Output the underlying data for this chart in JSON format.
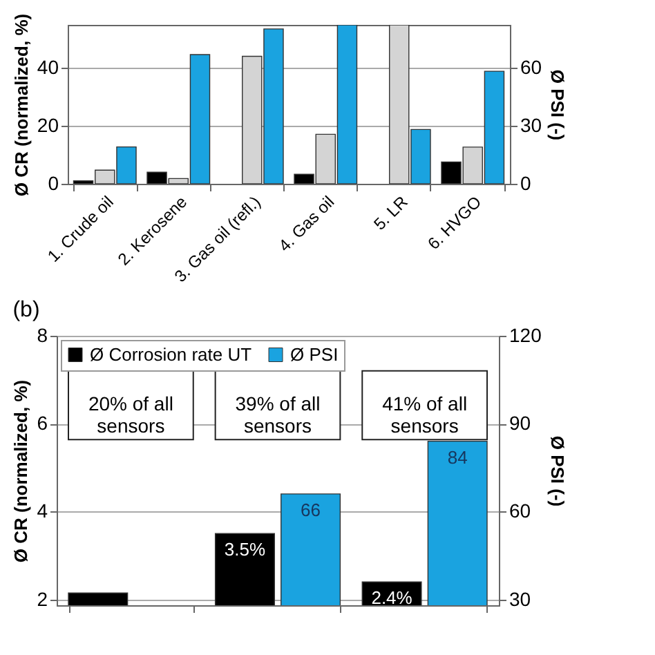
{
  "chart_data": [
    {
      "type": "bar",
      "categories": [
        "1. Crude oil",
        "2. Kerosene",
        "3. Gas oil (refl.)",
        "4. Gas oil",
        "5. LR",
        "6. HVGO"
      ],
      "ylabel": "Ø CR (normalized, %)",
      "y2label": "Ø PSI (-)",
      "ylim": [
        0,
        54.6
      ],
      "yticks": [
        0,
        20,
        40
      ],
      "y2lim": [
        0,
        81.9
      ],
      "y2ticks": [
        0,
        30,
        60
      ],
      "grid": "y",
      "series": [
        {
          "color": "#000000",
          "values": [
            1,
            4,
            null,
            3.3,
            null,
            7.5
          ]
        },
        {
          "color": "#d4d4d4",
          "values": [
            4.7,
            1.8,
            43.8,
            17,
            54.6,
            12.6
          ]
        },
        {
          "color": "#1aa3e0",
          "axis": "y2",
          "values": [
            19,
            66.6,
            79.8,
            81.9,
            28,
            58
          ]
        }
      ]
    },
    {
      "type": "bar",
      "title": "(b)",
      "categories": [
        null,
        null,
        null
      ],
      "ylabel": "Ø CR (normalized, %)",
      "y2label": "Ø PSI (-)",
      "ylim": [
        1.87,
        8
      ],
      "yticks": [
        2,
        4,
        6,
        8
      ],
      "y2lim": [
        28,
        120
      ],
      "y2ticks": [
        30,
        60,
        90,
        120
      ],
      "grid": "y",
      "legend": "top left",
      "annotations": [
        "20% of all\nsensors",
        "39% of all\nsensors",
        "41% of all\nsensors"
      ],
      "series": [
        {
          "name": "Ø Corrosion rate UT",
          "color": "#000000",
          "values": [
            2.15,
            3.5,
            2.4
          ],
          "value_labels": [
            null,
            "3.5%",
            "2.4%"
          ]
        },
        {
          "name": "Ø PSI",
          "color": "#1aa3e0",
          "axis": "y2",
          "values": [
            null,
            66,
            84
          ],
          "value_labels": [
            null,
            "66",
            "84"
          ]
        }
      ]
    }
  ]
}
